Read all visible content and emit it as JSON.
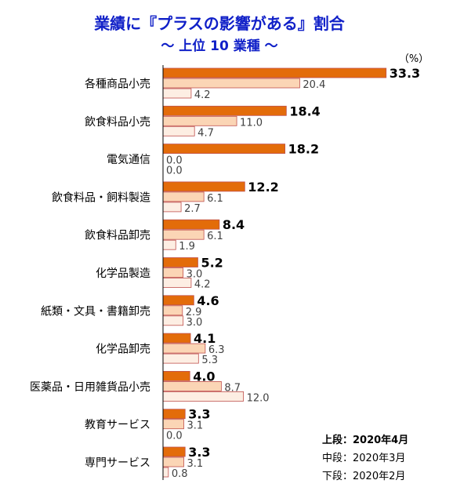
{
  "title": "業績に『プラスの影響がある』割合",
  "subtitle": "～ 上位 10 業種 ～",
  "unit_label": "（%）",
  "legend": {
    "top": "上段：2020年4月",
    "mid": "中段：2020年3月",
    "bot": "下段：2020年2月"
  },
  "chart_data": {
    "type": "bar",
    "orientation": "horizontal",
    "title": "業績に『プラスの影響がある』割合",
    "subtitle": "～ 上位 10 業種 ～",
    "unit": "（%）",
    "categories": [
      "各種商品小売",
      "飲食料品小売",
      "電気通信",
      "飲食料品・飼料製造",
      "飲食料品卸売",
      "化学品製造",
      "紙類・文具・書籍卸売",
      "化学品卸売",
      "医薬品・日用雑貨品小売",
      "教育サービス",
      "専門サービス"
    ],
    "series": [
      {
        "name": "上段：2020年4月",
        "color": "#e36c0a",
        "bold_labels": true,
        "values": [
          33.3,
          18.4,
          18.2,
          12.2,
          8.4,
          5.2,
          4.6,
          4.1,
          4.0,
          3.3,
          3.3
        ]
      },
      {
        "name": "中段：2020年3月",
        "color": "#fbd5b5",
        "bold_labels": false,
        "values": [
          20.4,
          11.0,
          0.0,
          6.1,
          6.1,
          3.0,
          2.9,
          6.3,
          8.7,
          3.1,
          3.1
        ]
      },
      {
        "name": "下段：2020年2月",
        "color": "#fdeee3",
        "bold_labels": false,
        "values": [
          4.2,
          4.7,
          0.0,
          2.7,
          1.9,
          4.2,
          3.0,
          5.3,
          12.0,
          0.0,
          0.8
        ]
      }
    ],
    "value_labels": [
      [
        "33.3",
        "18.4",
        "18.2",
        "12.2",
        "8.4",
        "5.2",
        "4.6",
        "4.1",
        "4.0",
        "3.3",
        "3.3"
      ],
      [
        "20.4",
        "11.0",
        "0.0",
        "6.1",
        "6.1",
        "3.0",
        "2.9",
        "6.3",
        "8.7",
        "3.1",
        "3.1"
      ],
      [
        "4.2",
        "4.7",
        "0.0",
        "2.7",
        "1.9",
        "4.2",
        "3.0",
        "5.3",
        "12.0",
        "0.0",
        "0.8"
      ]
    ],
    "xlim": [
      0,
      35
    ],
    "grid": false,
    "legend_position": "bottom-right"
  }
}
